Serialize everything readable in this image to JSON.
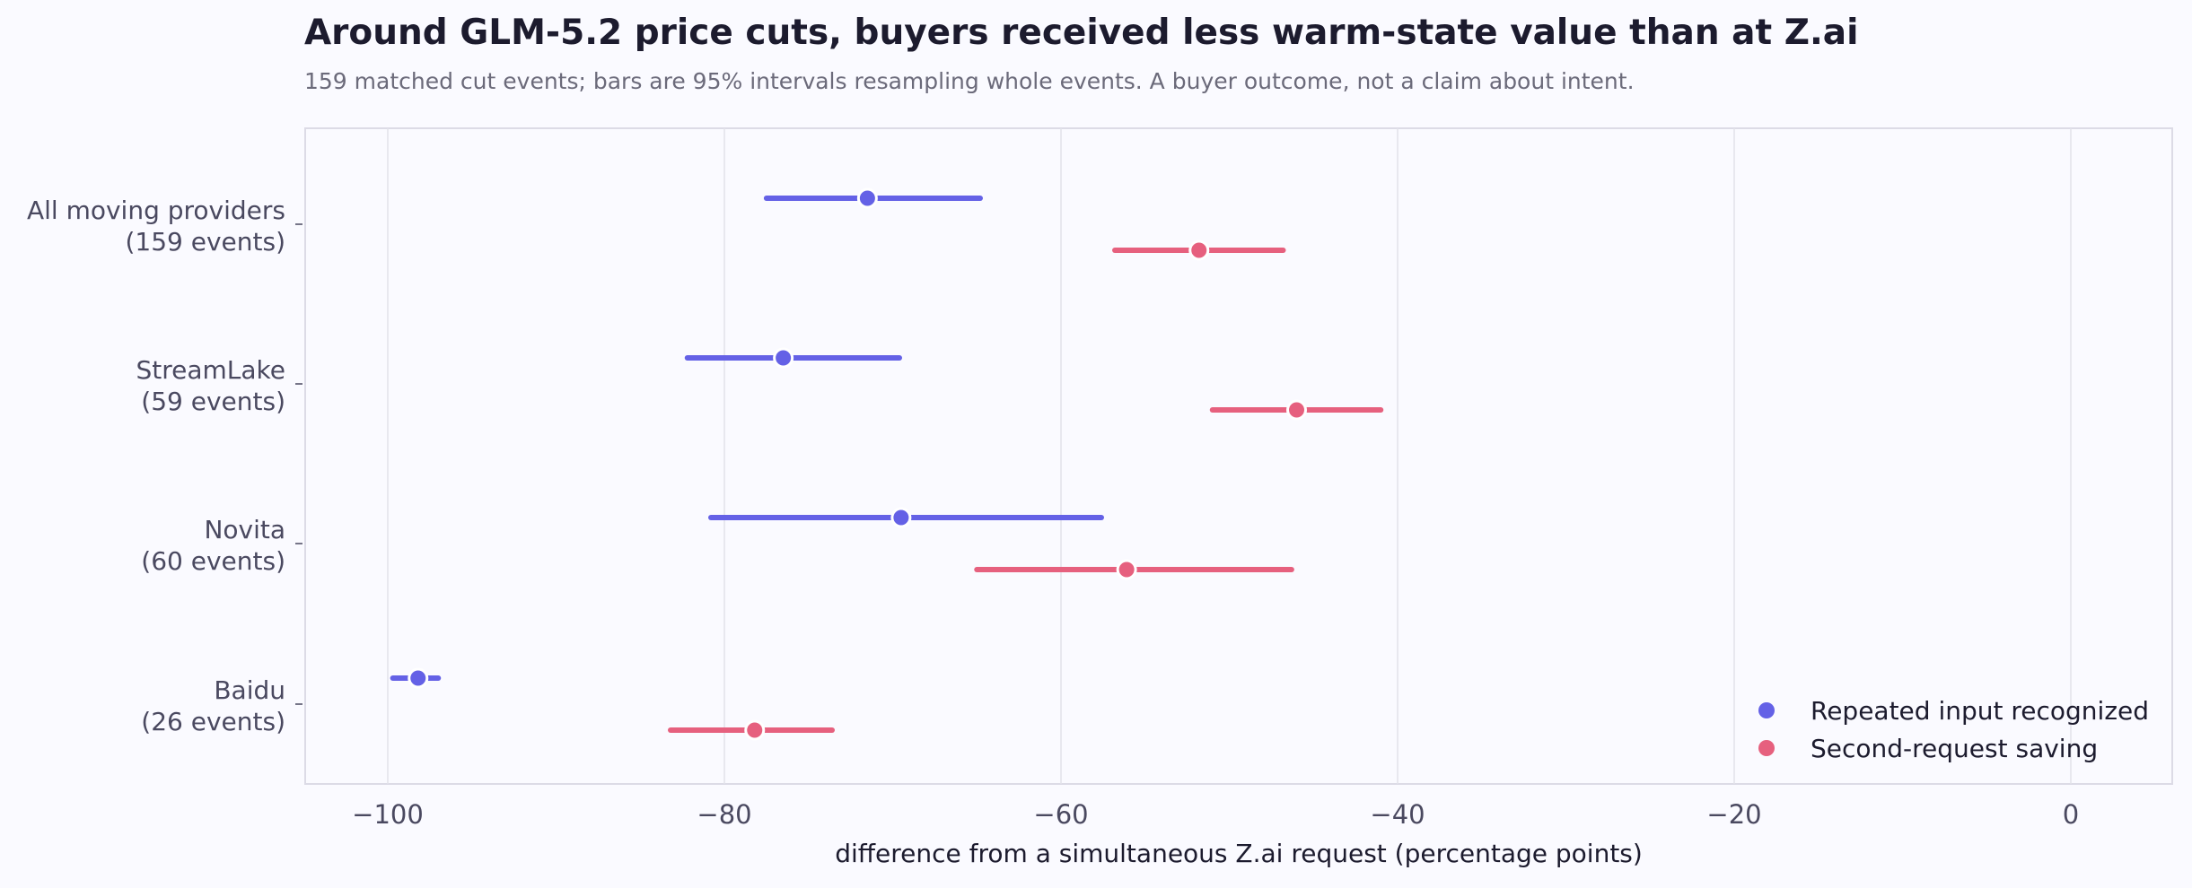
{
  "chart_data": {
    "type": "scatter",
    "title": "Around GLM-5.2 price cuts, buyers received less warm-state value than at Z.ai",
    "subtitle": "159 matched cut events; bars are 95% intervals resampling whole events. A buyer outcome, not a claim about intent.",
    "xlabel": "difference from a simultaneous Z.ai request  (percentage points)",
    "xlim": [
      -105,
      6
    ],
    "xticks": [
      -100,
      -80,
      -60,
      -40,
      -20,
      0
    ],
    "xtick_labels": [
      "−100",
      "−80",
      "−60",
      "−40",
      "−20",
      "0"
    ],
    "grid": "vertical",
    "legend_position": "bottom-right",
    "categories": [
      {
        "line1": "All moving providers",
        "line2": "(159 events)"
      },
      {
        "line1": "StreamLake",
        "line2": "(59 events)"
      },
      {
        "line1": "Novita",
        "line2": "(60 events)"
      },
      {
        "line1": "Baidu",
        "line2": "(26 events)"
      }
    ],
    "series": [
      {
        "name": "Repeated input recognized",
        "color": "#6461e6",
        "values": [
          -71.5,
          -76.5,
          -69.5,
          -98.2
        ],
        "lower": [
          -77.5,
          -82.2,
          -80.8,
          -99.7
        ],
        "upper": [
          -64.8,
          -69.6,
          -57.6,
          -97.0
        ]
      },
      {
        "name": "Second-request saving",
        "color": "#e6607e",
        "values": [
          -51.8,
          -46.0,
          -56.1,
          -78.2
        ],
        "lower": [
          -56.8,
          -51.0,
          -65.0,
          -83.2
        ],
        "upper": [
          -46.8,
          -41.0,
          -46.3,
          -73.6
        ]
      }
    ]
  }
}
